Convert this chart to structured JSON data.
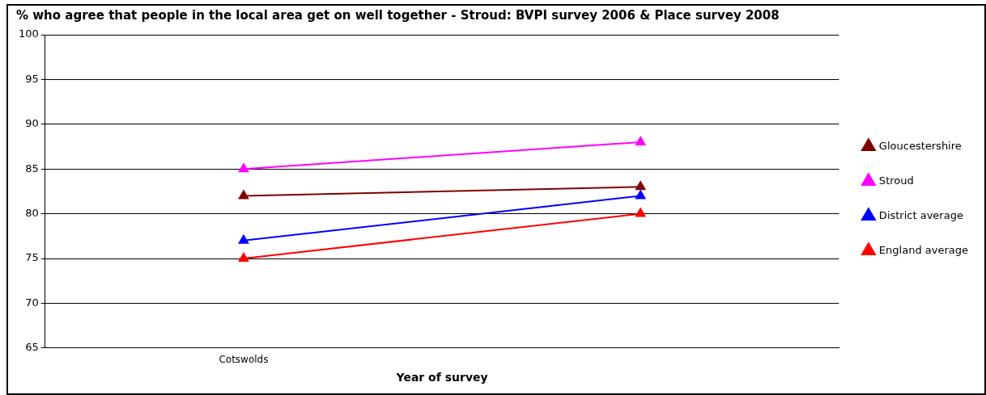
{
  "chart_data": {
    "type": "line",
    "title": "% who agree that people in the local area get on well together - Stroud: BVPI survey 2006 & Place survey 2008",
    "xlabel": "Year of survey",
    "categories": [
      "Cotswolds",
      null
    ],
    "series": [
      {
        "name": "Gloucestershire",
        "color": "#800000",
        "values": [
          82,
          83
        ]
      },
      {
        "name": "Stroud",
        "color": "#ff00ff",
        "values": [
          85,
          88
        ]
      },
      {
        "name": "District average",
        "color": "#0000ff",
        "values": [
          77,
          82
        ]
      },
      {
        "name": "England average",
        "color": "#ff0000",
        "values": [
          75,
          80
        ]
      }
    ],
    "ylim": [
      65,
      100
    ],
    "yticks": [
      65,
      70,
      75,
      80,
      85,
      90,
      95,
      100
    ],
    "grid": "y",
    "legend": "right",
    "marker": "triangle",
    "line_style": "solid"
  }
}
